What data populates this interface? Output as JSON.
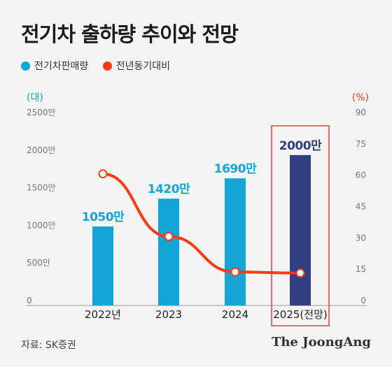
{
  "title": "전기차 출하량 추이와 전망",
  "legend": {
    "bar_label": "전기차판매량",
    "line_label": "전년동기대비"
  },
  "source": "자료: SK증권",
  "logo": "The JoongAng",
  "colors": {
    "bar": "#12a5d6",
    "bar_highlight": "#2f3f80",
    "line": "#ff3b12",
    "highlight_box": "#e8402a",
    "left_axis": "#12a5d6",
    "right_axis": "#ff3b12"
  },
  "chart_data": {
    "type": "bar",
    "categories": [
      "2022년",
      "2023",
      "2024",
      "2025(전망)"
    ],
    "series": [
      {
        "name": "전기차판매량",
        "type": "bar",
        "values": [
          1050,
          1420,
          1690,
          2000
        ],
        "labels": [
          "1050만",
          "1420만",
          "1690만",
          "2000만"
        ]
      },
      {
        "name": "전년동기대비",
        "type": "line",
        "axis": "right",
        "values": [
          63,
          33,
          16,
          15.5
        ]
      }
    ],
    "ylabel_left": "(대)",
    "ylabel_right": "(%)",
    "ylim_left": [
      0,
      2500
    ],
    "ylim_right": [
      0,
      90
    ],
    "yticks_left": [
      "0",
      "500만",
      "1000만",
      "1500만",
      "2000만",
      "2500만"
    ],
    "yticks_right": [
      "0",
      "15",
      "30",
      "45",
      "60",
      "75",
      "90"
    ],
    "highlight_category": "2025(전망)",
    "grid": false
  }
}
